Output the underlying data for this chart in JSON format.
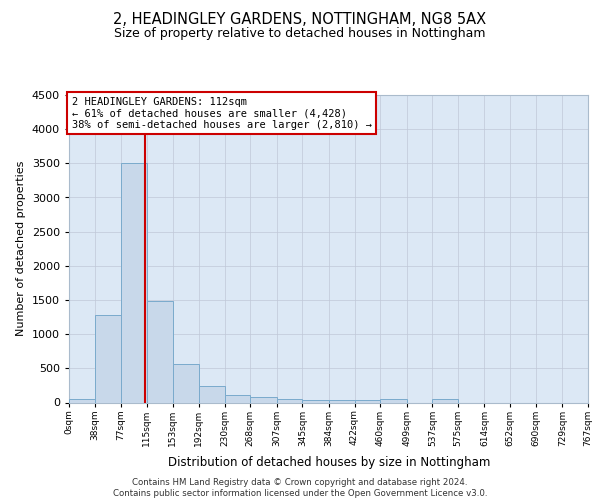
{
  "title": "2, HEADINGLEY GARDENS, NOTTINGHAM, NG8 5AX",
  "subtitle": "Size of property relative to detached houses in Nottingham",
  "xlabel": "Distribution of detached houses by size in Nottingham",
  "ylabel": "Number of detached properties",
  "bin_labels": [
    "0sqm",
    "38sqm",
    "77sqm",
    "115sqm",
    "153sqm",
    "192sqm",
    "230sqm",
    "268sqm",
    "307sqm",
    "345sqm",
    "384sqm",
    "422sqm",
    "460sqm",
    "499sqm",
    "537sqm",
    "575sqm",
    "614sqm",
    "652sqm",
    "690sqm",
    "729sqm",
    "767sqm"
  ],
  "bin_edges": [
    0,
    38,
    77,
    115,
    153,
    192,
    230,
    268,
    307,
    345,
    384,
    422,
    460,
    499,
    537,
    575,
    614,
    652,
    690,
    729,
    767
  ],
  "bar_heights": [
    50,
    1280,
    3500,
    1480,
    570,
    240,
    110,
    80,
    50,
    40,
    40,
    40,
    50,
    0,
    50,
    0,
    0,
    0,
    0,
    0
  ],
  "bar_color": "#c8d8ea",
  "bar_edge_color": "#7aaacc",
  "grid_color": "#c0c8d8",
  "background_color": "#dce8f5",
  "vline_x": 112,
  "vline_color": "#cc0000",
  "annotation_line1": "2 HEADINGLEY GARDENS: 112sqm",
  "annotation_line2": "← 61% of detached houses are smaller (4,428)",
  "annotation_line3": "38% of semi-detached houses are larger (2,810) →",
  "annotation_box_edgecolor": "#cc0000",
  "ylim_max": 4500,
  "yticks": [
    0,
    500,
    1000,
    1500,
    2000,
    2500,
    3000,
    3500,
    4000,
    4500
  ],
  "footer_line1": "Contains HM Land Registry data © Crown copyright and database right 2024.",
  "footer_line2": "Contains public sector information licensed under the Open Government Licence v3.0."
}
